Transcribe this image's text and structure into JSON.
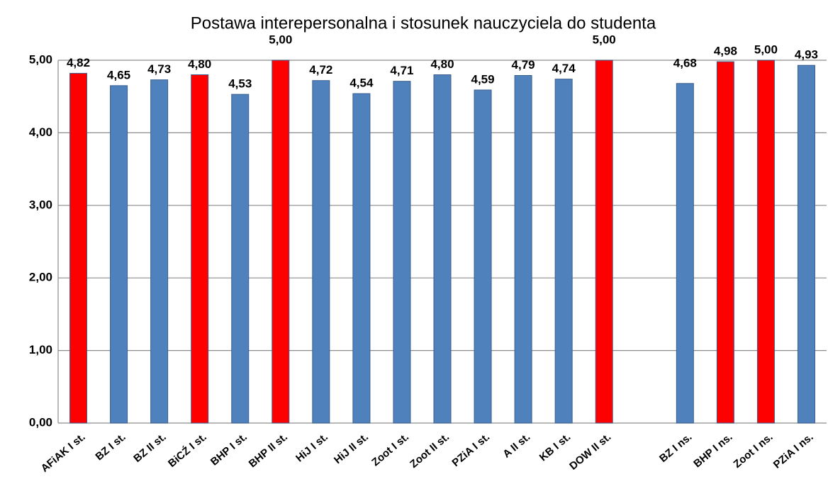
{
  "chart_data": {
    "type": "bar",
    "title": "Postawa interepersonalna i stosunek nauczyciela do studenta",
    "categories": [
      "AFiAK I st.",
      "BZ I st.",
      "BZ II st.",
      "BiCŹ I st.",
      "BHP I st.",
      "BHP II st.",
      "HiJ I st.",
      "HiJ II st.",
      "Zoot I st.",
      "Zoot II st.",
      "PZiA I st.",
      "A II st.",
      "KB I st.",
      "DOW II st.",
      null,
      "BZ I ns.",
      "BHP I ns.",
      "Zoot I ns.",
      "PZiA I ns."
    ],
    "values": [
      4.82,
      4.65,
      4.73,
      4.8,
      4.53,
      5.0,
      4.72,
      4.54,
      4.71,
      4.8,
      4.59,
      4.79,
      4.74,
      5.0,
      null,
      4.68,
      4.98,
      5.0,
      4.93
    ],
    "value_labels": [
      "4,82",
      "4,65",
      "4,73",
      "4,80",
      "4,53",
      "5,00",
      "4,72",
      "4,54",
      "4,71",
      "4,80",
      "4,59",
      "4,79",
      "4,74",
      "5,00",
      null,
      "4,68",
      "4,98",
      "5,00",
      "4,93"
    ],
    "colors": [
      "#ff0000",
      "#4f81bd",
      "#4f81bd",
      "#ff0000",
      "#4f81bd",
      "#ff0000",
      "#4f81bd",
      "#4f81bd",
      "#4f81bd",
      "#4f81bd",
      "#4f81bd",
      "#4f81bd",
      "#4f81bd",
      "#ff0000",
      null,
      "#4f81bd",
      "#ff0000",
      "#ff0000",
      "#4f81bd"
    ],
    "ylim": [
      0,
      5
    ],
    "yticks": [
      {
        "value": 0,
        "label": "0,00"
      },
      {
        "value": 1,
        "label": "1,00"
      },
      {
        "value": 2,
        "label": "2,00"
      },
      {
        "value": 3,
        "label": "3,00"
      },
      {
        "value": 4,
        "label": "4,00"
      },
      {
        "value": 5,
        "label": "5,00"
      }
    ],
    "grid": true
  }
}
